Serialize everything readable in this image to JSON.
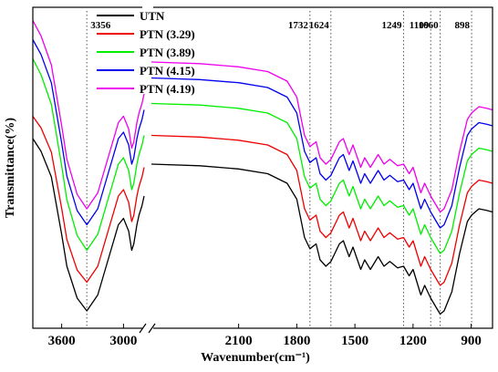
{
  "chart_data": {
    "type": "line",
    "xlabel": "Wavenumber(cm⁻¹)",
    "ylabel": "Transmittance(%)",
    "x_axis_reversed": true,
    "axis_break": [
      2800,
      2550
    ],
    "xlim": [
      3880,
      790
    ],
    "y_ticks_shown": false,
    "x_ticks": [
      {
        "value": 3600,
        "label": "3600"
      },
      {
        "value": 3000,
        "label": "3000"
      },
      {
        "value": 2100,
        "label": "2100"
      },
      {
        "value": 1800,
        "label": "1800"
      },
      {
        "value": 1500,
        "label": "1500"
      },
      {
        "value": 1200,
        "label": "1200"
      },
      {
        "value": 900,
        "label": "900"
      }
    ],
    "peak_markers": [
      {
        "value": 3356,
        "label": "3356"
      },
      {
        "value": 1732,
        "label": "1732"
      },
      {
        "value": 1624,
        "label": "1624"
      },
      {
        "value": 1249,
        "label": "1249"
      },
      {
        "value": 1109,
        "label": "1109"
      },
      {
        "value": 1060,
        "label": "1060"
      },
      {
        "value": 898,
        "label": "898"
      }
    ],
    "legend_position": "top-left",
    "series": [
      {
        "name": "UTN",
        "color": "#000000",
        "offset": 0
      },
      {
        "name": "PTN (3.29)",
        "color": "#ee0000",
        "offset": 0.09
      },
      {
        "name": "PTN (3.89)",
        "color": "#00ee00",
        "offset": 0.19
      },
      {
        "name": "PTN (4.15)",
        "color": "#0000ee",
        "offset": 0.27
      },
      {
        "name": "PTN (4.19)",
        "color": "#ee00ee",
        "offset": 0.32
      }
    ],
    "base_profile": [
      [
        3880,
        0.56
      ],
      [
        3800,
        0.52
      ],
      [
        3700,
        0.44
      ],
      [
        3600,
        0.26
      ],
      [
        3550,
        0.16
      ],
      [
        3450,
        0.06
      ],
      [
        3356,
        0.02
      ],
      [
        3250,
        0.07
      ],
      [
        3150,
        0.18
      ],
      [
        3050,
        0.29
      ],
      [
        3000,
        0.31
      ],
      [
        2950,
        0.27
      ],
      [
        2920,
        0.21
      ],
      [
        2900,
        0.23
      ],
      [
        2870,
        0.29
      ],
      [
        2850,
        0.32
      ],
      [
        2820,
        0.35
      ],
      [
        2800,
        0.38
      ],
      [
        2550,
        0.48
      ],
      [
        2300,
        0.475
      ],
      [
        2100,
        0.465
      ],
      [
        1950,
        0.45
      ],
      [
        1850,
        0.42
      ],
      [
        1800,
        0.37
      ],
      [
        1760,
        0.25
      ],
      [
        1732,
        0.215
      ],
      [
        1700,
        0.23
      ],
      [
        1680,
        0.18
      ],
      [
        1650,
        0.16
      ],
      [
        1624,
        0.175
      ],
      [
        1580,
        0.23
      ],
      [
        1560,
        0.24
      ],
      [
        1530,
        0.19
      ],
      [
        1510,
        0.22
      ],
      [
        1470,
        0.15
      ],
      [
        1450,
        0.18
      ],
      [
        1420,
        0.15
      ],
      [
        1380,
        0.19
      ],
      [
        1350,
        0.16
      ],
      [
        1320,
        0.175
      ],
      [
        1280,
        0.155
      ],
      [
        1249,
        0.16
      ],
      [
        1220,
        0.13
      ],
      [
        1200,
        0.15
      ],
      [
        1160,
        0.07
      ],
      [
        1140,
        0.1
      ],
      [
        1109,
        0.06
      ],
      [
        1080,
        0.03
      ],
      [
        1060,
        0.01
      ],
      [
        1040,
        0.02
      ],
      [
        1000,
        0.08
      ],
      [
        960,
        0.2
      ],
      [
        920,
        0.3
      ],
      [
        898,
        0.32
      ],
      [
        860,
        0.34
      ],
      [
        820,
        0.335
      ],
      [
        790,
        0.33
      ]
    ],
    "series_variations": [
      {
        "3600": 0,
        "1800": 0
      },
      {
        "3600": -0.02,
        "1800": 0
      },
      {
        "3600": 0.06,
        "1800": 0
      },
      {
        "3600": 0.04,
        "1800": 0
      },
      {
        "3600": 0.05,
        "1800": 0
      }
    ]
  }
}
